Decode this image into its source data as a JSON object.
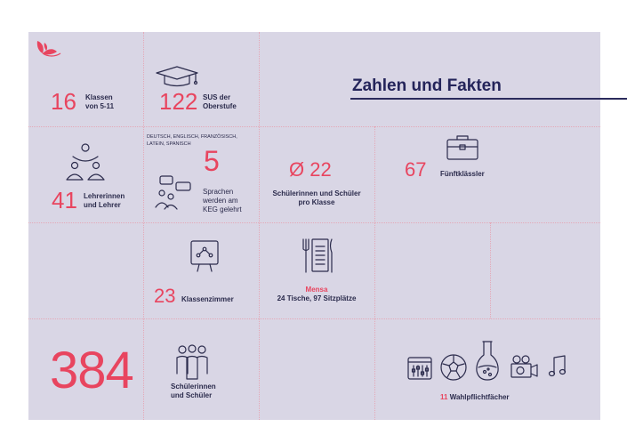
{
  "title": "Zahlen und Fakten",
  "colors": {
    "panel": "#d9d6e5",
    "accent": "#e8455f",
    "text": "#2b2b4c",
    "title": "#24245a"
  },
  "stats": {
    "klassen": {
      "number": "16",
      "label_line1": "Klassen",
      "label_line2": "von 5-11",
      "icon": "none"
    },
    "oberstufe": {
      "number": "122",
      "label_line1": "SUS der",
      "label_line2": "Oberstufe",
      "icon": "graduation-cap-icon"
    },
    "lehrer": {
      "number": "41",
      "label_line1": "Lehrerinnen",
      "label_line2": "und Lehrer",
      "icon": "people-icon"
    },
    "sprachen": {
      "languages_line1": "DEUTSCH, ENGLISCH, FRANZÖSISCH,",
      "languages_line2": "LATEIN, SPANISCH",
      "number": "5",
      "label_line1": "Sprachen",
      "label_line2": "werden am",
      "label_line3": "KEG gelehrt",
      "icon": "speech-people-icon"
    },
    "klassengroesse": {
      "number": "Ø 22",
      "label_line1": "Schülerinnen und Schüler",
      "label_line2": "pro Klasse"
    },
    "fuenftklaessler": {
      "number": "67",
      "label": "Fünftklässler",
      "icon": "briefcase-icon"
    },
    "klassenzimmer": {
      "number": "23",
      "label": "Klassenzimmer",
      "icon": "presentation-board-icon"
    },
    "mensa": {
      "title": "Mensa",
      "detail": "24 Tische, 97 Sitzplätze",
      "icon": "menu-cutlery-icon"
    },
    "schueler": {
      "number": "384",
      "label_line1": "Schülerinnen",
      "label_line2": "und Schüler",
      "icon": "student-group-icon"
    },
    "wahlpflicht": {
      "number": "11",
      "label": "Wahlpflichtfächer",
      "icons": [
        "mixer-icon",
        "soccer-ball-icon",
        "flask-icon",
        "camera-icon",
        "music-note-icon"
      ]
    }
  }
}
